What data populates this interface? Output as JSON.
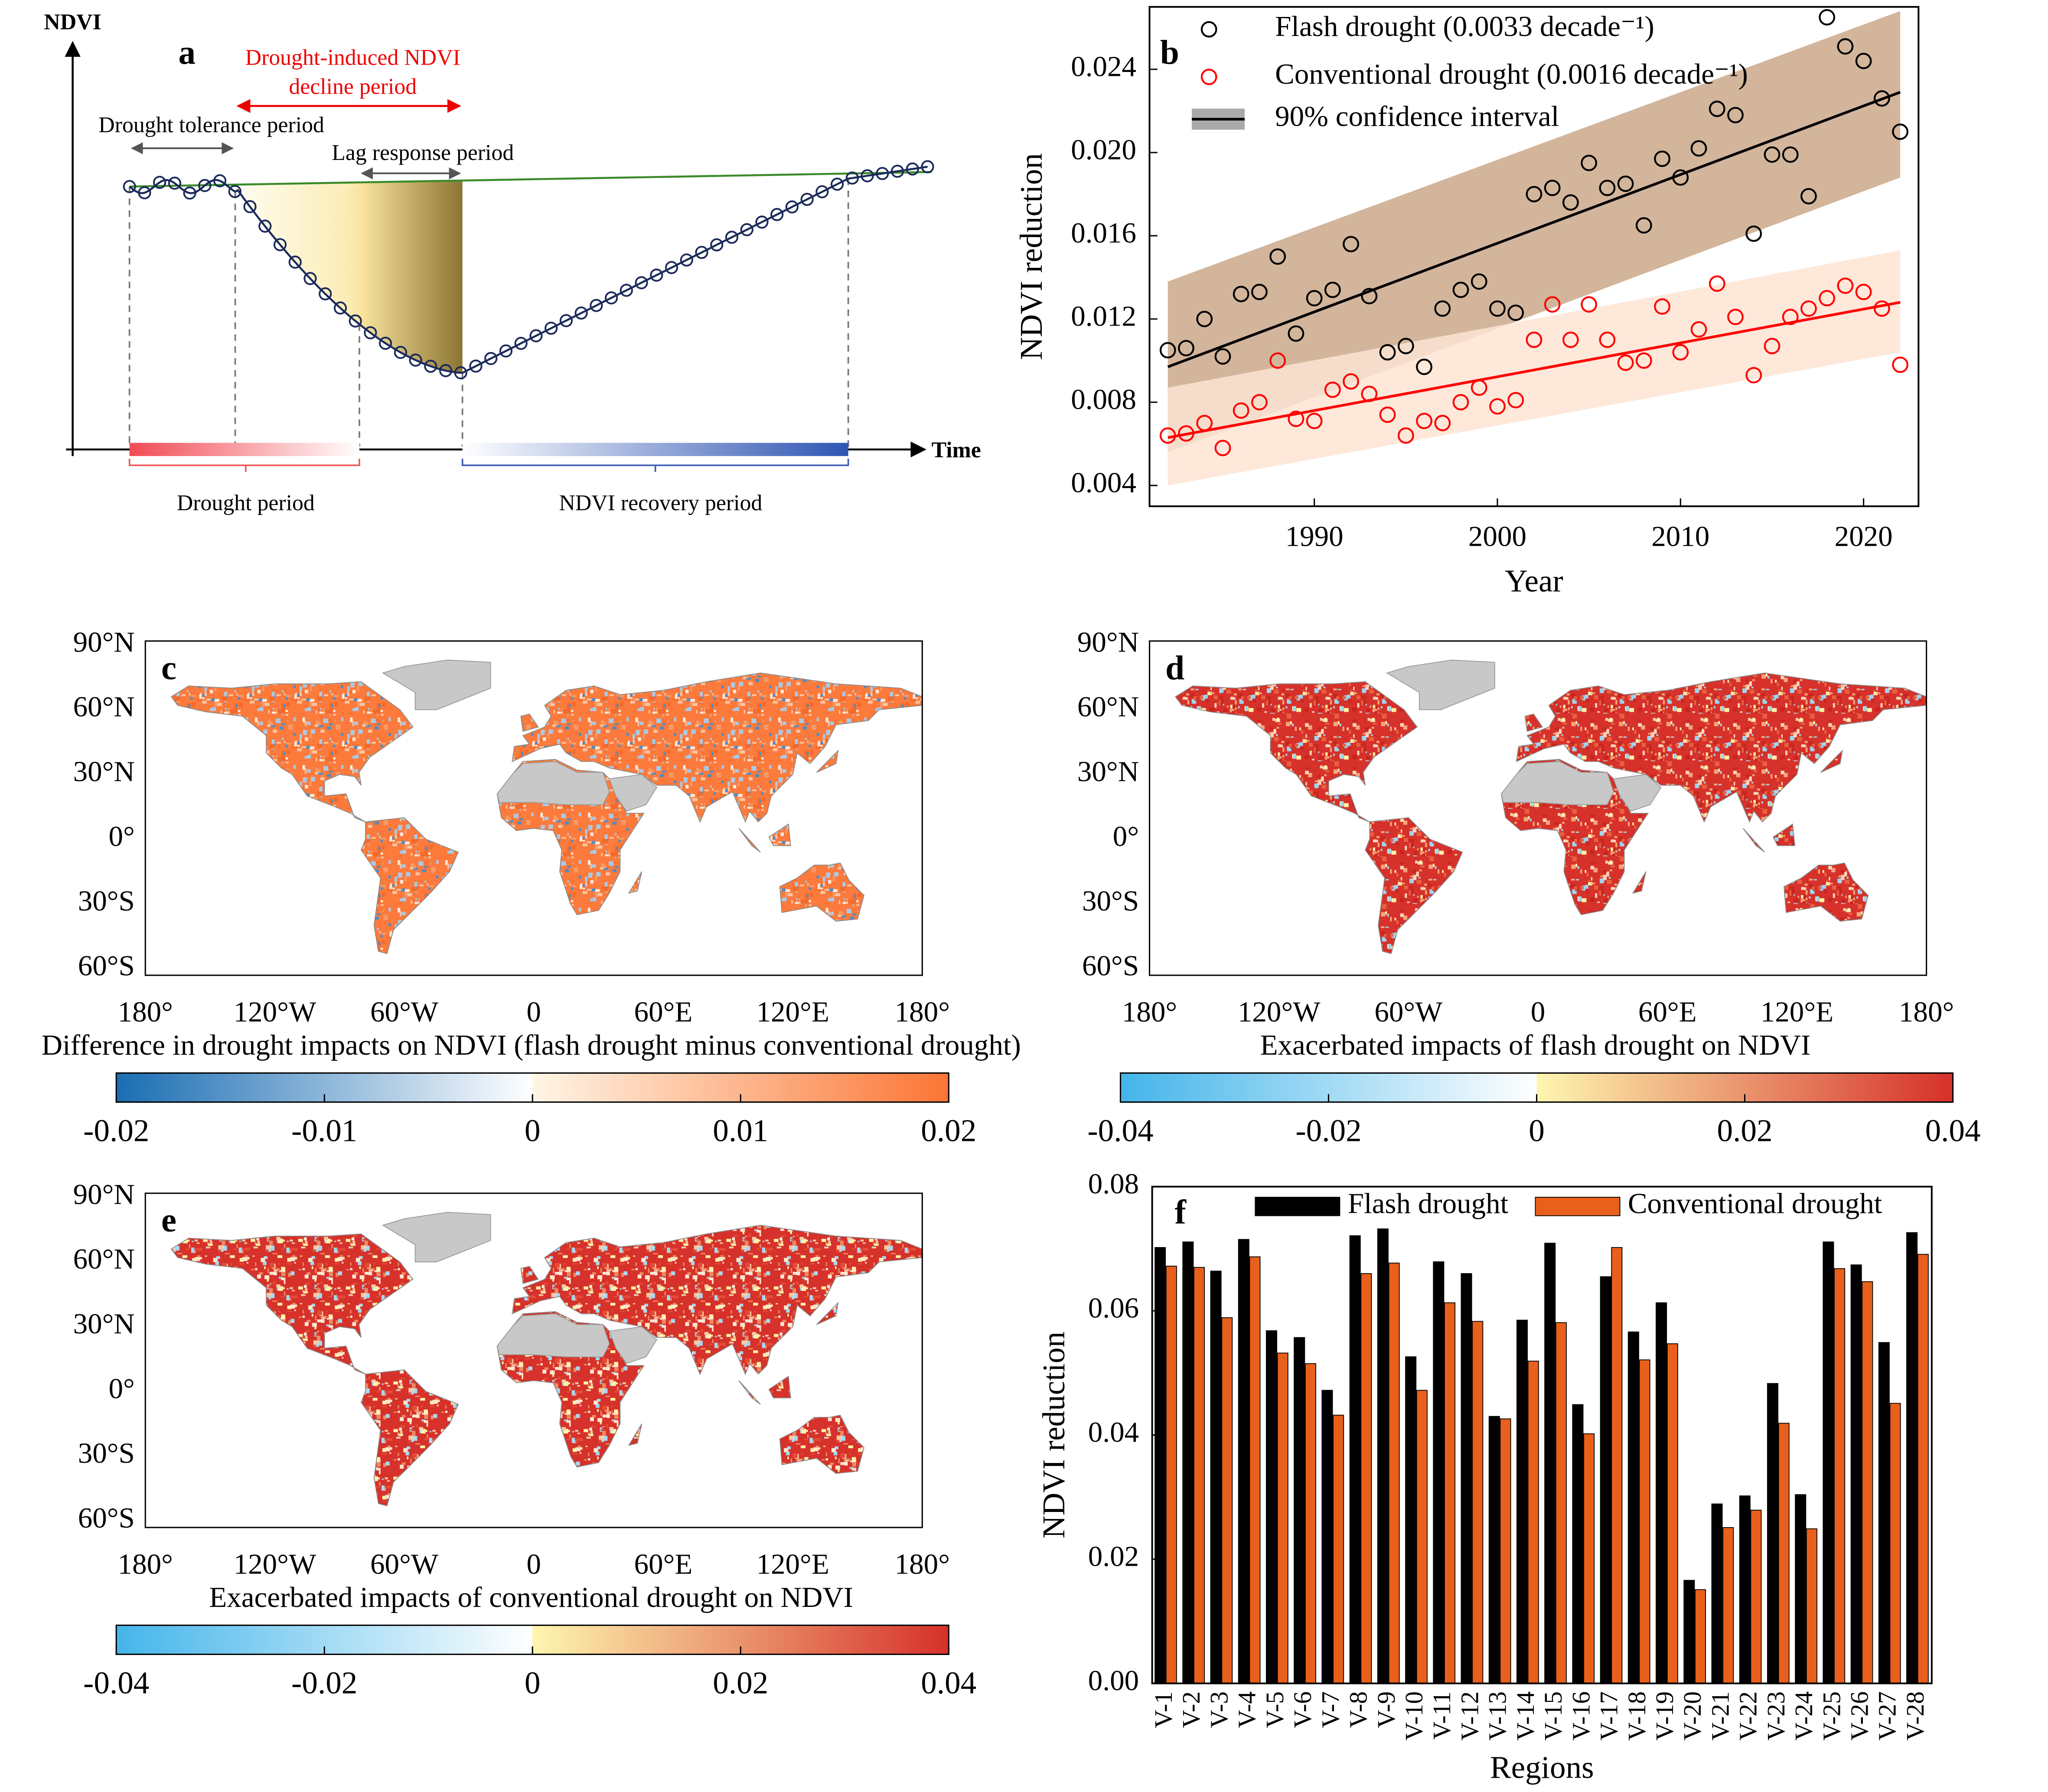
{
  "diagram": {
    "label": "a",
    "y_axis": "NDVI",
    "x_axis": "Time",
    "decline_period": [
      "Drought-induced NDVI",
      "decline period"
    ],
    "tolerance_period": "Drought tolerance period",
    "lag_period": "Lag response period",
    "drought_period": "Drought period",
    "recovery_period": "NDVI recovery period"
  },
  "chart_data": [
    {
      "type": "scatter",
      "label": "b",
      "x_label": "Year",
      "y_label": "NDVI reduction",
      "x": [
        1982,
        1983,
        1984,
        1985,
        1986,
        1987,
        1988,
        1989,
        1990,
        1991,
        1992,
        1993,
        1994,
        1995,
        1996,
        1997,
        1998,
        1999,
        2000,
        2001,
        2002,
        2003,
        2004,
        2005,
        2006,
        2007,
        2008,
        2009,
        2010,
        2011,
        2012,
        2013,
        2014,
        2015,
        2016,
        2017,
        2018,
        2019,
        2020,
        2021,
        2022
      ],
      "series": [
        {
          "name": "Flash drought (0.0033 decade⁻¹)",
          "color": "#000000",
          "values": [
            0.0105,
            0.0106,
            0.012,
            0.0102,
            0.0132,
            0.0133,
            0.015,
            0.0113,
            0.013,
            0.0134,
            0.0156,
            0.0131,
            0.0104,
            0.0107,
            0.0097,
            0.0125,
            0.0134,
            0.0138,
            0.0125,
            0.0123,
            0.018,
            0.0183,
            0.0176,
            0.0195,
            0.0183,
            0.0185,
            0.0165,
            0.0197,
            0.0188,
            0.0202,
            0.0221,
            0.0218,
            0.0161,
            0.0199,
            0.0199,
            0.0179,
            0.0265,
            0.0251,
            0.0244,
            0.0226,
            0.021
          ]
        },
        {
          "name": "Conventional drought (0.0016 decade⁻¹)",
          "color": "#ff0000",
          "values": [
            0.0064,
            0.0065,
            0.007,
            0.0058,
            0.0076,
            0.008,
            0.01,
            0.0072,
            0.0071,
            0.0086,
            0.009,
            0.0084,
            0.0074,
            0.0064,
            0.0071,
            0.007,
            0.008,
            0.0087,
            0.0078,
            0.0081,
            0.011,
            0.0127,
            0.011,
            0.0127,
            0.011,
            0.0099,
            0.01,
            0.0126,
            0.0104,
            0.0115,
            0.0137,
            0.0121,
            0.0093,
            0.0107,
            0.0121,
            0.0125,
            0.013,
            0.0136,
            0.0133,
            0.0125,
            0.0098
          ]
        }
      ],
      "trends": [
        {
          "x": [
            1982,
            2022
          ],
          "values": [
            0.0097,
            0.0229
          ],
          "lower": [
            0.0056,
            0.0188
          ],
          "upper": [
            0.0138,
            0.0268
          ],
          "color": "#000000",
          "band_color": "#caa88a"
        },
        {
          "x": [
            1982,
            2022
          ],
          "values": [
            0.0063,
            0.0128
          ],
          "lower": [
            0.004,
            0.0104
          ],
          "upper": [
            0.0087,
            0.0153
          ],
          "color": "#ff0000",
          "band_color": "#fde4d4"
        }
      ],
      "band_legend": "90% confidence interval",
      "xlim": [
        1981,
        2023
      ],
      "ylim": [
        0.003,
        0.027
      ],
      "xticks": [
        1990,
        2000,
        2010,
        2020
      ],
      "yticks": [
        0.004,
        0.008,
        0.012,
        0.016,
        {
          "value": 0.02,
          "label": "0.020"
        },
        0.024
      ]
    },
    {
      "type": "bar",
      "label": "f",
      "x_label": "Regions",
      "y_label": "NDVI reduction",
      "categories": [
        "V-1",
        "V-2",
        "V-3",
        "V-4",
        "V-5",
        "V-6",
        "V-7",
        "V-8",
        "V-9",
        "V-10",
        "V-11",
        "V-12",
        "V-13",
        "V-14",
        "V-15",
        "V-16",
        "V-17",
        "V-18",
        "V-19",
        "V-20",
        "V-21",
        "V-22",
        "V-23",
        "V-24",
        "V-25",
        "V-26",
        "V-27",
        "V-28"
      ],
      "series": [
        {
          "name": "Flash drought",
          "color": "#000000",
          "values": [
            0.0702,
            0.0711,
            0.0664,
            0.0715,
            0.0568,
            0.0557,
            0.0472,
            0.0721,
            0.0732,
            0.0526,
            0.0679,
            0.066,
            0.043,
            0.0585,
            0.0709,
            0.0449,
            0.0655,
            0.0566,
            0.0613,
            0.0166,
            0.0289,
            0.0302,
            0.0483,
            0.0304,
            0.0711,
            0.0674,
            0.0549,
            0.0726
          ]
        },
        {
          "name": "Conventional drought",
          "color": "#e8601c",
          "values": [
            0.0672,
            0.067,
            0.0589,
            0.0687,
            0.0532,
            0.0515,
            0.0432,
            0.066,
            0.0677,
            0.0472,
            0.0613,
            0.0583,
            0.0426,
            0.0519,
            0.0581,
            0.0402,
            0.0702,
            0.0521,
            0.0547,
            0.0151,
            0.0251,
            0.0279,
            0.0419,
            0.0249,
            0.0668,
            0.0647,
            0.0451,
            0.0691
          ]
        }
      ],
      "ylim": [
        0,
        0.08
      ],
      "yticks": [
        {
          "value": 0,
          "label": "0.00"
        },
        0.02,
        0.04,
        0.06,
        0.08
      ]
    }
  ],
  "map_axes": {
    "lat_labels": [
      "90°N",
      "60°N",
      "30°N",
      "0°",
      "30°S",
      "60°S"
    ],
    "lon_labels": [
      "180°",
      "120°W",
      "60°W",
      "0",
      "60°E",
      "120°E",
      "180°"
    ]
  },
  "maps": [
    {
      "label": "c",
      "caption": "Difference in drought impacts on NDVI (flash drought minus conventional drought)",
      "colorbar": {
        "ticks": [
          -0.02,
          -0.01,
          0,
          0.01,
          0.02
        ],
        "negative_colors": [
          "#1a6db3",
          "#ffffff"
        ],
        "positive_colors": [
          "#fff6e6",
          "#fb7535"
        ]
      }
    },
    {
      "label": "d",
      "caption": "Exacerbated impacts of flash drought on NDVI",
      "colorbar": {
        "ticks": [
          -0.04,
          -0.02,
          0,
          0.02,
          0.04
        ],
        "negative_colors": [
          "#44b5ea",
          "#ffffff"
        ],
        "positive_colors": [
          "#fef6b0",
          "#d6312a"
        ]
      }
    },
    {
      "label": "e",
      "caption": "Exacerbated impacts of conventional drought on NDVI",
      "colorbar": {
        "ticks": [
          -0.04,
          -0.02,
          0,
          0.02,
          0.04
        ],
        "negative_colors": [
          "#44b5ea",
          "#ffffff"
        ],
        "positive_colors": [
          "#fef6b0",
          "#d6312a"
        ]
      }
    }
  ]
}
